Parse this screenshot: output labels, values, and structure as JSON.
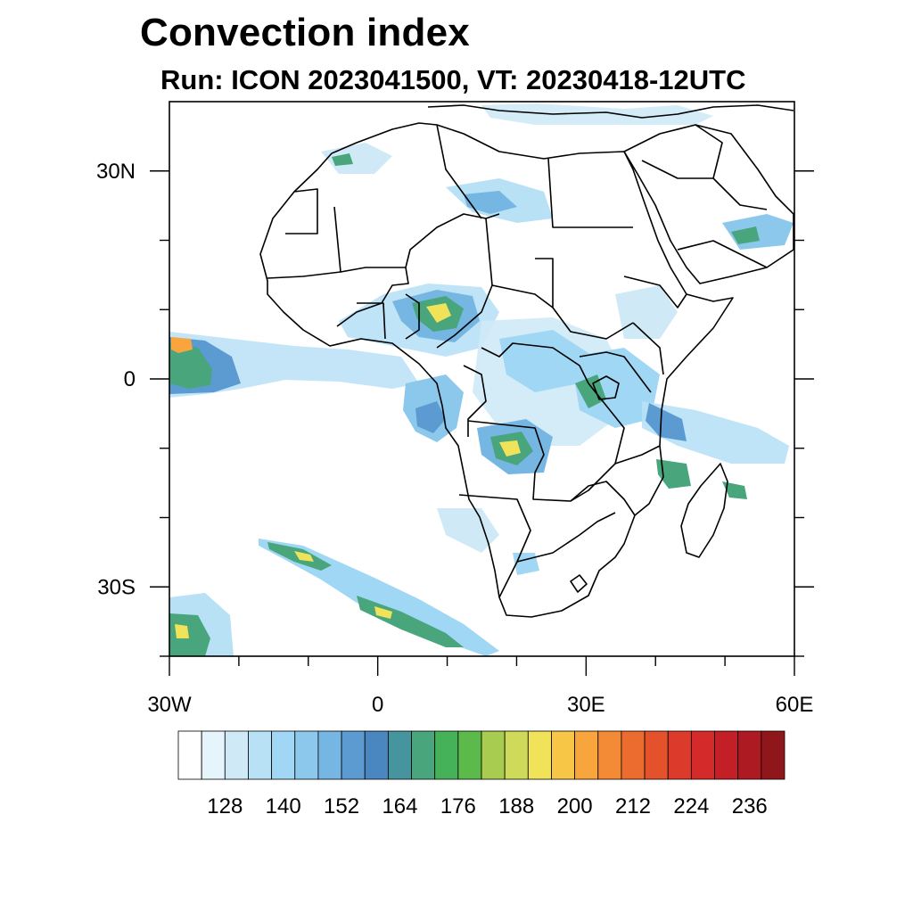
{
  "header": {
    "title": "Convection index",
    "subtitle": "Run: ICON 2023041500,  VT: 20230418-12UTC"
  },
  "map": {
    "projection": "cylindrical equidistant",
    "lon_range": [
      -30,
      60
    ],
    "lat_range": [
      -40,
      40
    ],
    "lon_ticks": [
      {
        "value": -30,
        "label": "30W"
      },
      {
        "value": 0,
        "label": "0"
      },
      {
        "value": 30,
        "label": "30E"
      },
      {
        "value": 60,
        "label": "60E"
      }
    ],
    "lat_ticks": [
      {
        "value": 30,
        "label": "30N"
      },
      {
        "value": 0,
        "label": "0"
      },
      {
        "value": -30,
        "label": "30S"
      }
    ],
    "minor_lon_ticks": [
      -20,
      -10,
      10,
      20,
      40,
      50
    ],
    "minor_lat_ticks": [
      20,
      10,
      -10,
      -20,
      -40
    ]
  },
  "colorbar": {
    "colors": [
      "#ffffff",
      "#e6f4fb",
      "#cfe9f7",
      "#b8e1f6",
      "#9fd7f4",
      "#8cc8ec",
      "#76b6e3",
      "#5c9bd2",
      "#4a86bf",
      "#46959e",
      "#48a57c",
      "#45b25a",
      "#5cba4a",
      "#a8cc4f",
      "#cfd95a",
      "#f0e35a",
      "#f7c647",
      "#f7a53c",
      "#f28a36",
      "#ec6b2f",
      "#e4522b",
      "#dc3a2a",
      "#d42a2a",
      "#c21f27",
      "#ad1a22",
      "#8f171b"
    ],
    "tick_labels": [
      "128",
      "140",
      "152",
      "164",
      "176",
      "188",
      "200",
      "212",
      "224",
      "236"
    ]
  },
  "colors": {
    "land_outline": "#000000",
    "frame": "#000000"
  }
}
